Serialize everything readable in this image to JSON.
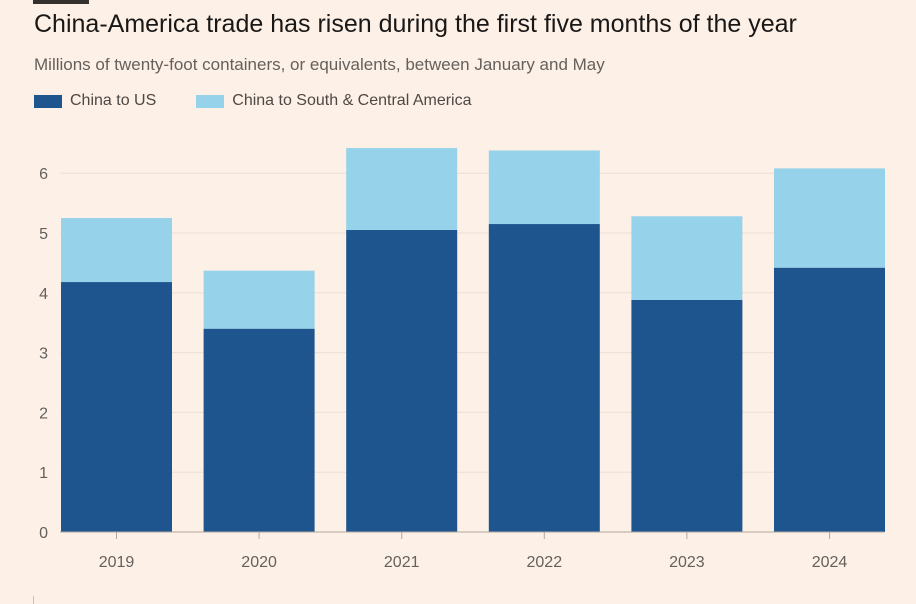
{
  "title": "China-America trade has risen during the first five months of the year",
  "subtitle": "Millions of twenty-foot containers, or equivalents, between January and May",
  "colors": {
    "background": "#fdf0e6",
    "china_to_us": "#1f558f",
    "china_to_scam": "#96d2ea",
    "gridline": "#ece0d5",
    "baseline": "#b3a99f"
  },
  "chart_data": {
    "type": "bar",
    "stacked": true,
    "categories": [
      "2019",
      "2020",
      "2021",
      "2022",
      "2023",
      "2024"
    ],
    "series": [
      {
        "name": "China to US",
        "values": [
          4.18,
          3.4,
          5.05,
          5.15,
          3.88,
          4.42
        ]
      },
      {
        "name": "China to South & Central America",
        "values": [
          1.07,
          0.97,
          1.37,
          1.23,
          1.4,
          1.66
        ]
      }
    ],
    "yticks": [
      "0",
      "1",
      "2",
      "3",
      "4",
      "5",
      "6"
    ],
    "ylim": [
      0,
      6.5
    ],
    "xlabel": "",
    "ylabel": "",
    "grid": true,
    "legend_position": "top-left"
  }
}
